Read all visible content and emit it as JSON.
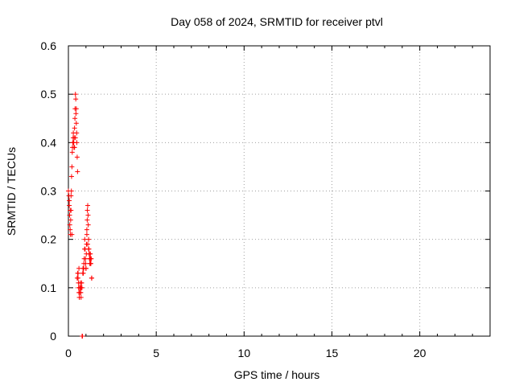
{
  "chart_data": {
    "type": "scatter",
    "title": "Day 058 of 2024, SRMTID for receiver ptvl",
    "xlabel": "GPS time / hours",
    "ylabel": "SRMTID / TECUs",
    "xlim": [
      0,
      24
    ],
    "ylim": [
      0,
      0.6
    ],
    "xticks": [
      0,
      5,
      10,
      15,
      20
    ],
    "yticks": [
      0,
      0.1,
      0.2,
      0.3,
      0.4,
      0.5,
      0.6
    ],
    "xtick_labels": [
      "0",
      "5",
      "10",
      "15",
      "20"
    ],
    "ytick_labels": [
      "0",
      "0.1",
      "0.2",
      "0.3",
      "0.4",
      "0.5",
      "0.6"
    ],
    "grid": true,
    "marker": "+",
    "marker_color": "#ff0000",
    "series": [
      {
        "name": "ptvl",
        "x": [
          0.0,
          0.03,
          0.05,
          0.07,
          0.08,
          0.1,
          0.12,
          0.13,
          0.15,
          0.17,
          0.18,
          0.2,
          0.22,
          0.23,
          0.25,
          0.27,
          0.28,
          0.3,
          0.32,
          0.33,
          0.35,
          0.37,
          0.38,
          0.4,
          0.42,
          0.43,
          0.45,
          0.47,
          0.48,
          0.5,
          0.52,
          0.53,
          0.55,
          0.57,
          0.58,
          0.6,
          0.62,
          0.63,
          0.65,
          0.67,
          0.68,
          0.7,
          0.72,
          0.73,
          0.75,
          0.77,
          0.78,
          0.8,
          0.82,
          0.83,
          0.85,
          0.87,
          0.88,
          0.9,
          0.92,
          0.93,
          0.95,
          0.97,
          0.98,
          1.0,
          1.02,
          1.03,
          1.05,
          1.07,
          1.08,
          1.1,
          1.12,
          1.13,
          1.15,
          1.17,
          1.18,
          1.2,
          1.22,
          1.23,
          1.25,
          1.27,
          1.28,
          1.3,
          1.32,
          1.33,
          0.05,
          0.1,
          0.15,
          0.2,
          0.3,
          0.35,
          0.4,
          0.45,
          0.5,
          0.55,
          0.6,
          0.65,
          0.7,
          0.75,
          1.0,
          1.05,
          1.1,
          1.15,
          1.2,
          1.25
        ],
        "y": [
          0.3,
          0.29,
          0.27,
          0.25,
          0.23,
          0.22,
          0.21,
          0.24,
          0.26,
          0.3,
          0.33,
          0.35,
          0.38,
          0.39,
          0.4,
          0.41,
          0.42,
          0.4,
          0.39,
          0.41,
          0.43,
          0.45,
          0.47,
          0.5,
          0.49,
          0.46,
          0.44,
          0.42,
          0.4,
          0.37,
          0.34,
          0.13,
          0.12,
          0.11,
          0.1,
          0.09,
          0.08,
          0.09,
          0.1,
          0.11,
          0.1,
          0.09,
          0.08,
          0.1,
          0.11,
          0.1,
          0.0,
          0.0,
          0.13,
          0.14,
          0.13,
          0.14,
          0.15,
          0.16,
          0.18,
          0.2,
          0.18,
          0.16,
          0.15,
          0.14,
          0.17,
          0.19,
          0.22,
          0.24,
          0.26,
          0.27,
          0.25,
          0.23,
          0.2,
          0.18,
          0.17,
          0.16,
          0.15,
          0.16,
          0.17,
          0.16,
          0.15,
          0.16,
          0.12,
          0.12,
          0.28,
          0.26,
          0.29,
          0.21,
          0.4,
          0.39,
          0.41,
          0.47,
          0.12,
          0.13,
          0.14,
          0.1,
          0.09,
          0.11,
          0.14,
          0.21,
          0.19,
          0.18,
          0.17,
          0.15
        ]
      }
    ]
  }
}
